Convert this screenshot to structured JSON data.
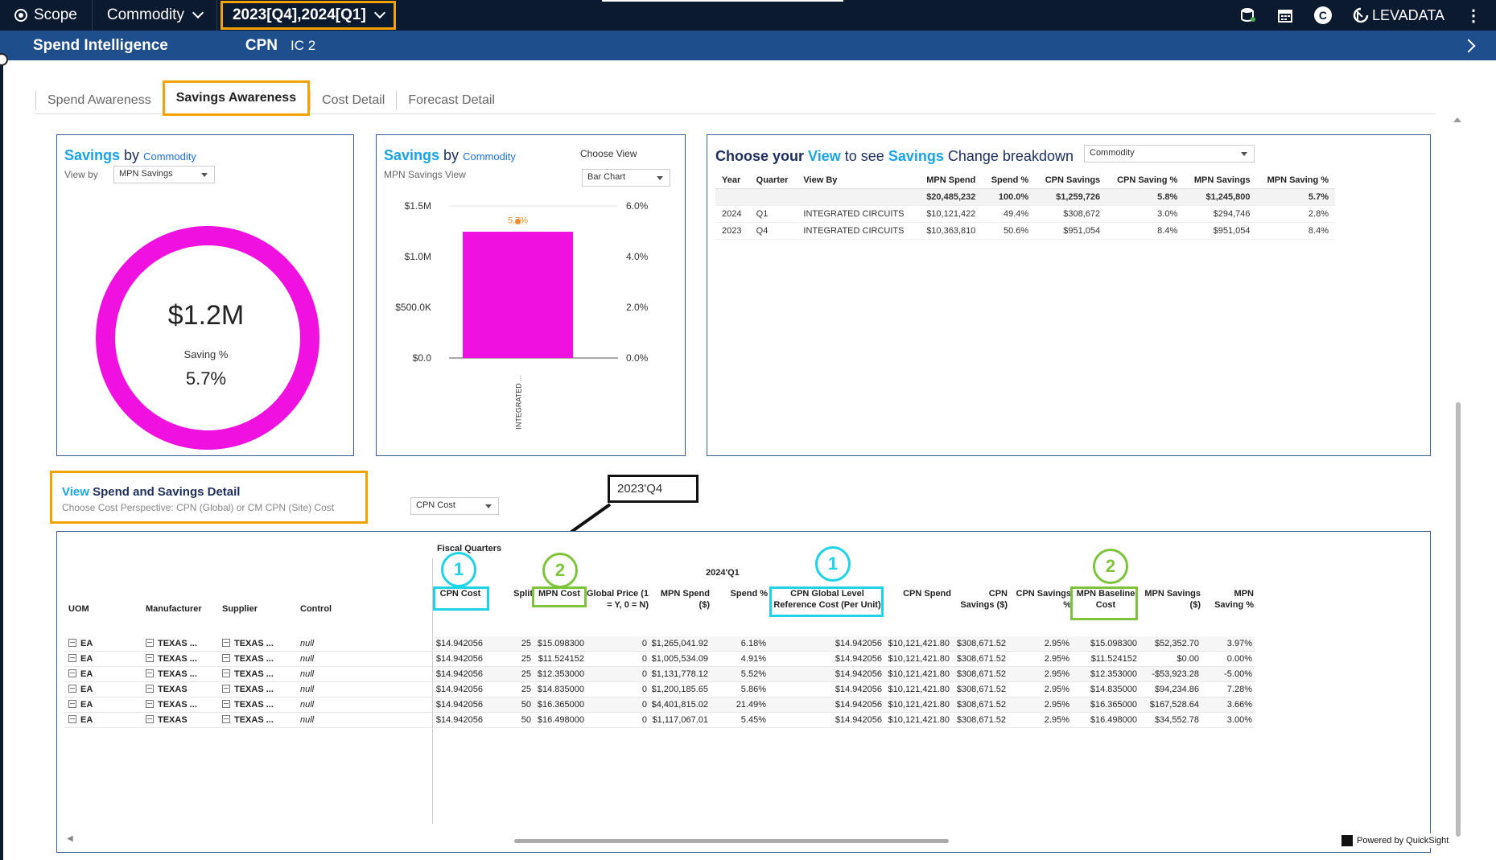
{
  "topbar": {
    "scope": "Scope",
    "commodity": "Commodity",
    "period": "2023[Q4],2024[Q1]",
    "brand": "LEVADATA",
    "avatar_letter": "C"
  },
  "subbar": {
    "app": "Spend Intelligence",
    "cpn_label": "CPN",
    "cpn_value": "IC 2"
  },
  "tabs": [
    "Spend Awareness",
    "Savings Awareness",
    "Cost Detail",
    "Forecast Detail"
  ],
  "donut_card": {
    "title_word": "Savings",
    "title_by": "by",
    "title_sub": "Commodity",
    "view_by_label": "View by",
    "view_by_value": "MPN Savings",
    "center_value": "$1.2M",
    "saving_label": "Saving %",
    "saving_value": "5.7%",
    "color": "#f011e0"
  },
  "bar_card": {
    "title_word": "Savings",
    "title_by": "by",
    "title_sub": "Commodity",
    "subtitle": "MPN Savings View",
    "choose_view_label": "Choose View",
    "choose_view_value": "Bar Chart"
  },
  "chart_data": {
    "type": "bar",
    "categories": [
      "INTEGRATED ..."
    ],
    "values": [
      1245800
    ],
    "secondary_values": [
      5.7
    ],
    "secondary_label": "5.7%",
    "ylim": [
      0,
      1500000
    ],
    "y_ticks": [
      "$0.0",
      "$500.0K",
      "$1.0M",
      "$1.5M"
    ],
    "y2_ticks": [
      "0.0%",
      "2.0%",
      "4.0%",
      "6.0%"
    ],
    "y2lim": [
      0,
      6
    ],
    "bar_color": "#f011e0",
    "line_color": "#f28c28"
  },
  "breakdown_card": {
    "t1": "Choose your",
    "t2": "View",
    "t3": "to see",
    "t4": "Savings",
    "t5": "Change breakdown",
    "select_value": "Commodity",
    "headers": [
      "Year",
      "Quarter",
      "View By",
      "MPN Spend",
      "Spend %",
      "CPN Savings",
      "CPN Saving %",
      "MPN Savings",
      "MPN Saving %"
    ],
    "total": [
      "",
      "",
      "",
      "$20,485,232",
      "100.0%",
      "$1,259,726",
      "5.8%",
      "$1,245,800",
      "5.7%"
    ],
    "rows": [
      [
        "2024",
        "Q1",
        "INTEGRATED CIRCUITS",
        "$10,121,422",
        "49.4%",
        "$308,672",
        "3.0%",
        "$294,746",
        "2.8%"
      ],
      [
        "2023",
        "Q4",
        "INTEGRATED CIRCUITS",
        "$10,363,810",
        "50.6%",
        "$951,054",
        "8.4%",
        "$951,054",
        "8.4%"
      ]
    ]
  },
  "detail_header": {
    "view_word": "View",
    "title_rest": "Spend and Savings Detail",
    "subtitle": "Choose Cost Perspective:  CPN (Global) or CM CPN (Site) Cost",
    "select_value": "CPN Cost",
    "callout": "2023'Q4"
  },
  "detail_table": {
    "fiscal_label": "Fiscal Quarters",
    "quarter_label": "2024'Q1",
    "left_headers": [
      "UOM",
      "Manufacturer",
      "Supplier",
      "Control"
    ],
    "headers": [
      "CPN Cost",
      "Split",
      "MPN Cost",
      "Global Price (1 = Y, 0 = N)",
      "MPN Spend ($)",
      "Spend %",
      "CPN Global Level Reference Cost (Per Unit)",
      "CPN Spend",
      "CPN Savings ($)",
      "CPN Savings %",
      "MPN Baseline Cost",
      "MPN Savings ($)",
      "MPN Saving %"
    ],
    "rows": [
      {
        "left": [
          "EA",
          "TEXAS ...",
          "TEXAS ...",
          "null"
        ],
        "vals": [
          "$14.942056",
          "25",
          "$15.098300",
          "0",
          "$1,265,041.92",
          "6.18%",
          "$14.942056",
          "$10,121,421.80",
          "$308,671.52",
          "2.95%",
          "$15.098300",
          "$52,352.70",
          "3.97%"
        ]
      },
      {
        "left": [
          "EA",
          "TEXAS ...",
          "TEXAS ...",
          "null"
        ],
        "vals": [
          "$14.942056",
          "25",
          "$11.524152",
          "0",
          "$1,005,534.09",
          "4.91%",
          "$14.942056",
          "$10,121,421.80",
          "$308,671.52",
          "2.95%",
          "$11.524152",
          "$0.00",
          "0.00%"
        ]
      },
      {
        "left": [
          "EA",
          "TEXAS ...",
          "TEXAS ...",
          "null"
        ],
        "vals": [
          "$14.942056",
          "25",
          "$12.353000",
          "0",
          "$1,131,778.12",
          "5.52%",
          "$14.942056",
          "$10,121,421.80",
          "$308,671.52",
          "2.95%",
          "$12.353000",
          "-$53,923.28",
          "-5.00%"
        ]
      },
      {
        "left": [
          "EA",
          "TEXAS",
          "TEXAS ...",
          "null"
        ],
        "vals": [
          "$14.942056",
          "25",
          "$14.835000",
          "0",
          "$1,200,185.65",
          "5.86%",
          "$14.942056",
          "$10,121,421.80",
          "$308,671.52",
          "2.95%",
          "$14.835000",
          "$94,234.86",
          "7.28%"
        ]
      },
      {
        "left": [
          "EA",
          "TEXAS ...",
          "TEXAS ...",
          "null"
        ],
        "vals": [
          "$14.942056",
          "50",
          "$16.365000",
          "0",
          "$4,401,815.02",
          "21.49%",
          "$14.942056",
          "$10,121,421.80",
          "$308,671.52",
          "2.95%",
          "$16.365000",
          "$167,528.64",
          "3.66%"
        ]
      },
      {
        "left": [
          "EA",
          "TEXAS",
          "TEXAS ...",
          "null"
        ],
        "vals": [
          "$14.942056",
          "50",
          "$16.498000",
          "0",
          "$1,117,067.01",
          "5.45%",
          "$14.942056",
          "$10,121,421.80",
          "$308,671.52",
          "2.95%",
          "$16.498000",
          "$34,552.78",
          "3.00%"
        ]
      }
    ],
    "markers": [
      "1",
      "2",
      "1",
      "2"
    ]
  },
  "footer": {
    "powered": "Powered by QuickSight"
  }
}
